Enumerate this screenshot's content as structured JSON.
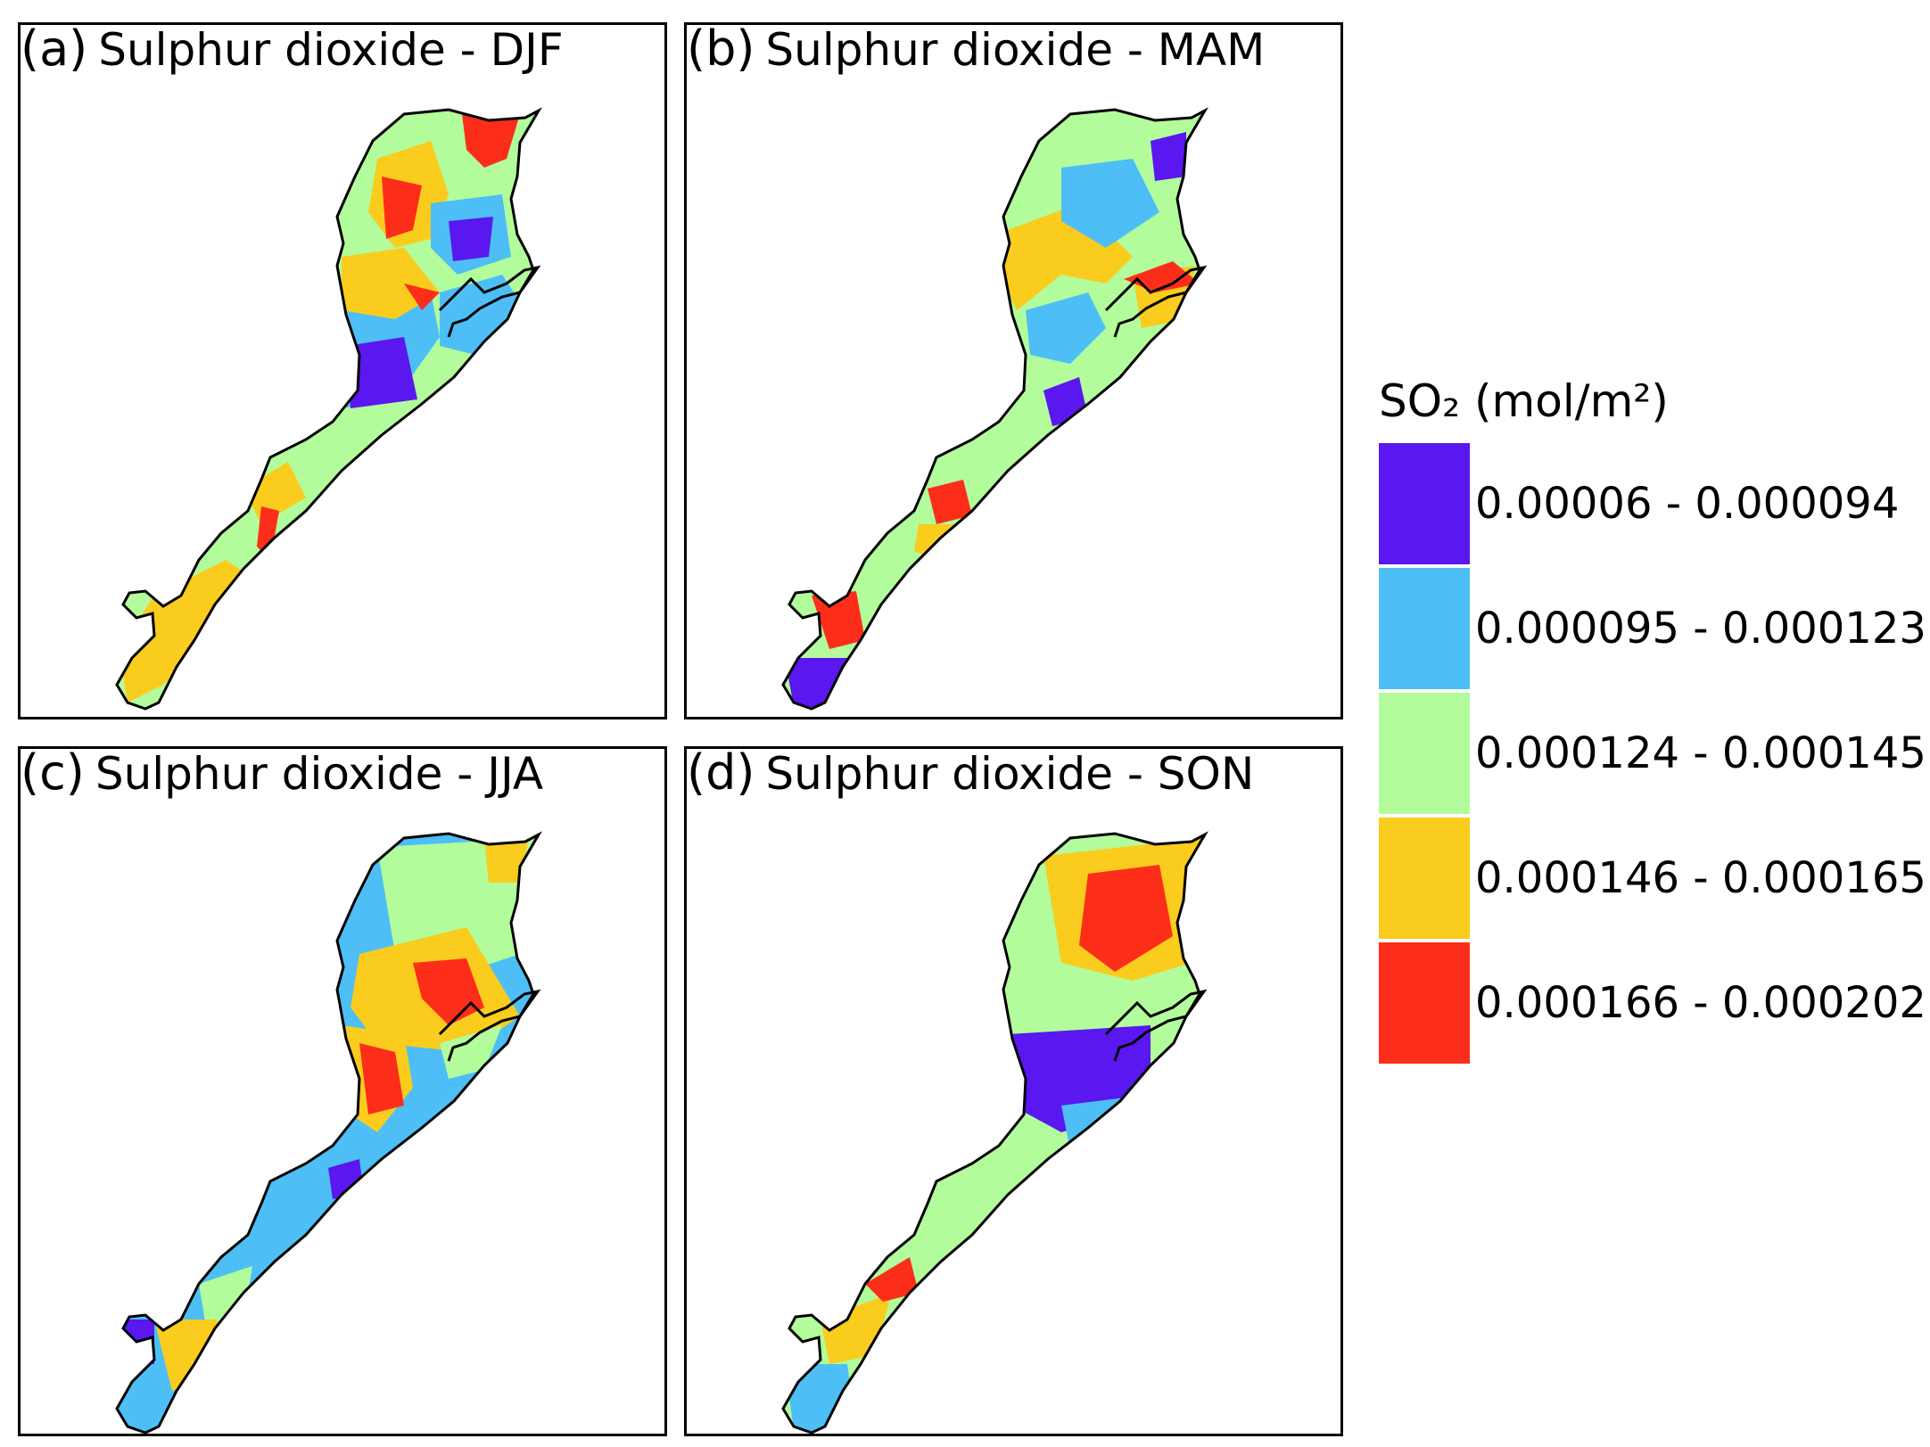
{
  "figure": {
    "panels": [
      {
        "id": "a",
        "label": "(a)",
        "title": "Sulphur dioxide - DJF"
      },
      {
        "id": "b",
        "label": "(b)",
        "title": "Sulphur dioxide - MAM"
      },
      {
        "id": "c",
        "label": "(c)",
        "title": "Sulphur dioxide - JJA"
      },
      {
        "id": "d",
        "label": "(d)",
        "title": "Sulphur dioxide - SON"
      }
    ]
  },
  "legend": {
    "title": "SO₂ (mol/m²)",
    "classes": [
      {
        "range": "0.00006 - 0.000094",
        "color": "#5a17f0"
      },
      {
        "range": "0.000095 - 0.000123",
        "color": "#4dbff6"
      },
      {
        "range": "0.000124 - 0.000145",
        "color": "#b2fc9c"
      },
      {
        "range": "0.000146 - 0.000165",
        "color": "#f9cc1e"
      },
      {
        "range": "0.000166 - 0.000202",
        "color": "#fc2e1a"
      }
    ]
  }
}
